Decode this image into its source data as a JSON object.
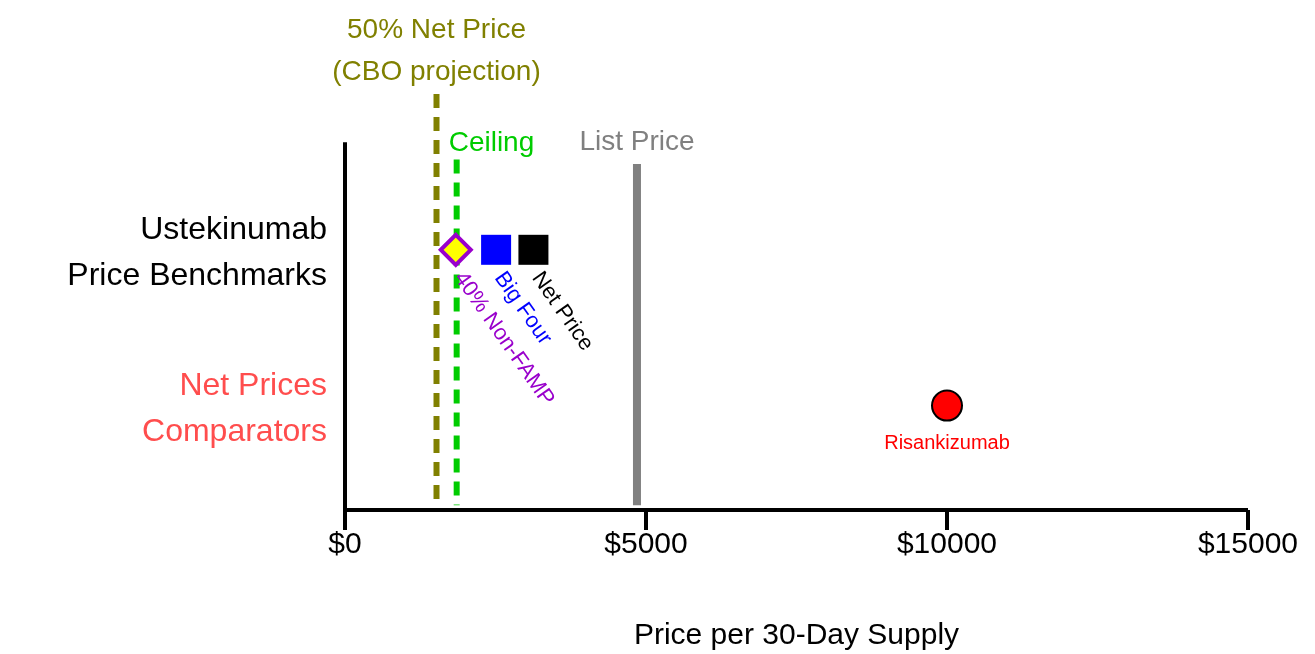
{
  "chart_data": {
    "type": "scatter",
    "orientation": "horizontal",
    "xlabel": "Price per 30-Day Supply",
    "categories": [
      "Ustekinumab\nPrice Benchmarks",
      "Net Prices\nComparators"
    ],
    "xlim": [
      0,
      15000
    ],
    "xticks": [
      {
        "value": 0,
        "label": "$0"
      },
      {
        "value": 5000,
        "label": "$5000"
      },
      {
        "value": 10000,
        "label": "$10000"
      },
      {
        "value": 15000,
        "label": "$15000"
      }
    ],
    "series": [
      {
        "name": "40% Non-FAMP",
        "color": "#9900cc",
        "marker": "diamond",
        "values": [
          1840,
          null
        ]
      },
      {
        "name": "Big Four",
        "color": "#0000ff",
        "marker": "square",
        "values": [
          2510,
          null
        ]
      },
      {
        "name": "Net Price",
        "color": "#000000",
        "marker": "square",
        "values": [
          3130,
          null
        ]
      },
      {
        "name": "Risankizumab",
        "color": "#ff0000",
        "marker": "circle",
        "values": [
          null,
          10000
        ]
      }
    ],
    "ref_lines": [
      {
        "axis": "x",
        "value": 1520,
        "label": "50% Net Price\n(CBO projection)",
        "color": "#808000",
        "line_style": "dashed"
      },
      {
        "axis": "x",
        "value": 1855,
        "label": "Ceiling",
        "color": "#00cc00",
        "line_style": "dashed"
      },
      {
        "axis": "x",
        "value": 4850,
        "label": "List Price",
        "color": "#808080",
        "line_style": "solid"
      }
    ]
  }
}
